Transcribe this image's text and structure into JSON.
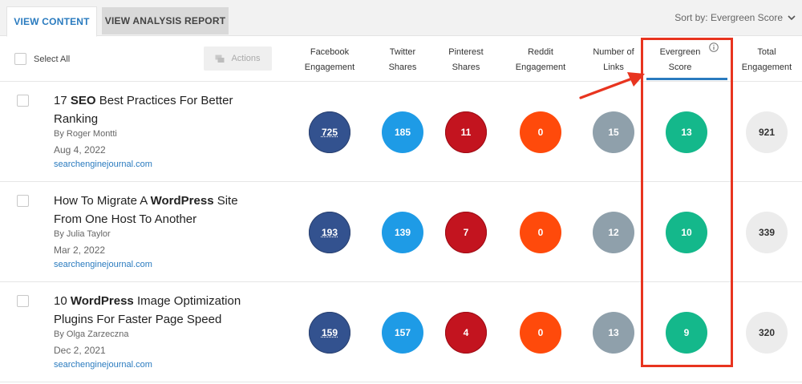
{
  "tabs": {
    "view_content": "VIEW CONTENT",
    "view_analysis": "VIEW ANALYSIS REPORT"
  },
  "sort_label": "Sort by: Evergreen Score",
  "header": {
    "select_all": "Select All",
    "actions": "Actions",
    "columns": [
      {
        "line1": "Facebook",
        "line2": "Engagement"
      },
      {
        "line1": "Twitter",
        "line2": "Shares"
      },
      {
        "line1": "Pinterest",
        "line2": "Shares"
      },
      {
        "line1": "Reddit",
        "line2": "Engagement"
      },
      {
        "line1": "Number of",
        "line2": "Links"
      },
      {
        "line1": "Evergreen",
        "line2": "Score"
      },
      {
        "line1": "Total",
        "line2": "Engagement"
      }
    ]
  },
  "rows": [
    {
      "title_pre": "17 ",
      "title_bold": "SEO",
      "title_post": " Best Practices For Better Ranking",
      "author": "By  Roger Montti",
      "date": "Aug 4, 2022",
      "source": "searchenginejournal.com",
      "facebook": "725",
      "twitter": "185",
      "pinterest": "11",
      "reddit": "0",
      "links": "15",
      "evergreen": "13",
      "total": "921"
    },
    {
      "title_pre": "How To Migrate A ",
      "title_bold": "WordPress",
      "title_post": " Site From One Host To Another",
      "author": "By  Julia Taylor",
      "date": "Mar 2, 2022",
      "source": "searchenginejournal.com",
      "facebook": "193",
      "twitter": "139",
      "pinterest": "7",
      "reddit": "0",
      "links": "12",
      "evergreen": "10",
      "total": "339"
    },
    {
      "title_pre": "10 ",
      "title_bold": "WordPress",
      "title_post": " Image Optimization Plugins For Faster Page Speed",
      "author": "By  Olga Zarzeczna",
      "date": "Dec 2, 2021",
      "source": "searchenginejournal.com",
      "facebook": "159",
      "twitter": "157",
      "pinterest": "4",
      "reddit": "0",
      "links": "13",
      "evergreen": "9",
      "total": "320"
    }
  ],
  "colors": {
    "facebook": "#33528f",
    "twitter": "#1e9be6",
    "pinterest": "#c3141f",
    "reddit": "#ff4a0b",
    "links": "#8fa0ab",
    "evergreen": "#14b88b",
    "total": "#ececec",
    "accent": "#2a7bbf",
    "highlight": "#e8341f"
  },
  "icons": {
    "sort": "chevron-down-icon",
    "actions": "copy-icon",
    "info": "info-icon",
    "annotation": "red-arrow-icon"
  }
}
